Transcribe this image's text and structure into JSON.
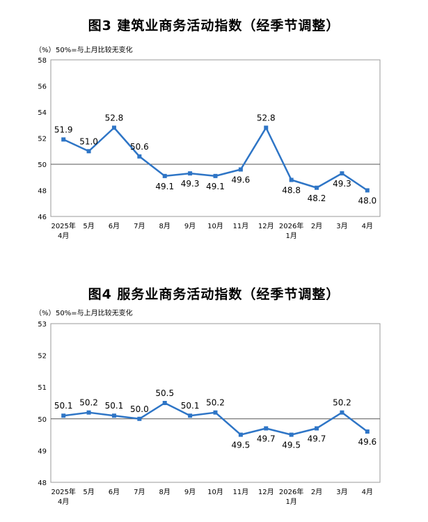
{
  "charts": [
    {
      "title": "图3  建筑业商务活动指数（经季节调整）",
      "unit": "（%）",
      "note": "50%=与上月比较无变化"
    },
    {
      "title": "图4  服务业商务活动指数（经季节调整）",
      "unit": "（%）",
      "note": "50%=与上月比较无变化"
    }
  ],
  "colors": {
    "line": "#2e75c6",
    "axis": "#9a9a9a",
    "reference": "#555555"
  },
  "chart_data": [
    {
      "type": "line",
      "title": "图3  建筑业商务活动指数（经季节调整）",
      "ylabel": "（%）",
      "categories": [
        [
          "2025年",
          "4月"
        ],
        [
          "5月"
        ],
        [
          "6月"
        ],
        [
          "7月"
        ],
        [
          "8月"
        ],
        [
          "9月"
        ],
        [
          "10月"
        ],
        [
          "11月"
        ],
        [
          "12月"
        ],
        [
          "2026年",
          "1月"
        ],
        [
          "2月"
        ],
        [
          "3月"
        ],
        [
          "4月"
        ]
      ],
      "values": [
        51.9,
        51.0,
        52.8,
        50.6,
        49.1,
        49.3,
        49.1,
        49.6,
        52.8,
        48.8,
        48.2,
        49.3,
        48.0
      ],
      "labels": [
        "51.9",
        "51.0",
        "52.8",
        "50.6",
        "49.1",
        "49.3",
        "49.1",
        "49.6",
        "52.8",
        "48.8",
        "48.2",
        "49.3",
        "48.0"
      ],
      "ylim": [
        46,
        58
      ],
      "yticks": [
        46,
        48,
        50,
        52,
        54,
        56,
        58
      ],
      "reference_line": 50,
      "marker": "square",
      "grid": false
    },
    {
      "type": "line",
      "title": "图4  服务业商务活动指数（经季节调整）",
      "ylabel": "（%）",
      "categories": [
        [
          "2025年",
          "4月"
        ],
        [
          "5月"
        ],
        [
          "6月"
        ],
        [
          "7月"
        ],
        [
          "8月"
        ],
        [
          "9月"
        ],
        [
          "10月"
        ],
        [
          "11月"
        ],
        [
          "12月"
        ],
        [
          "2026年",
          "1月"
        ],
        [
          "2月"
        ],
        [
          "3月"
        ],
        [
          "4月"
        ]
      ],
      "values": [
        50.1,
        50.2,
        50.1,
        50.0,
        50.5,
        50.1,
        50.2,
        49.5,
        49.7,
        49.5,
        49.7,
        50.2,
        49.6
      ],
      "labels": [
        "50.1",
        "50.2",
        "50.1",
        "50.0",
        "50.5",
        "50.1",
        "50.2",
        "49.5",
        "49.7",
        "49.5",
        "49.7",
        "50.2",
        "49.6"
      ],
      "ylim": [
        48,
        53
      ],
      "yticks": [
        48,
        49,
        50,
        51,
        52,
        53
      ],
      "reference_line": 50,
      "marker": "square",
      "grid": false
    }
  ]
}
